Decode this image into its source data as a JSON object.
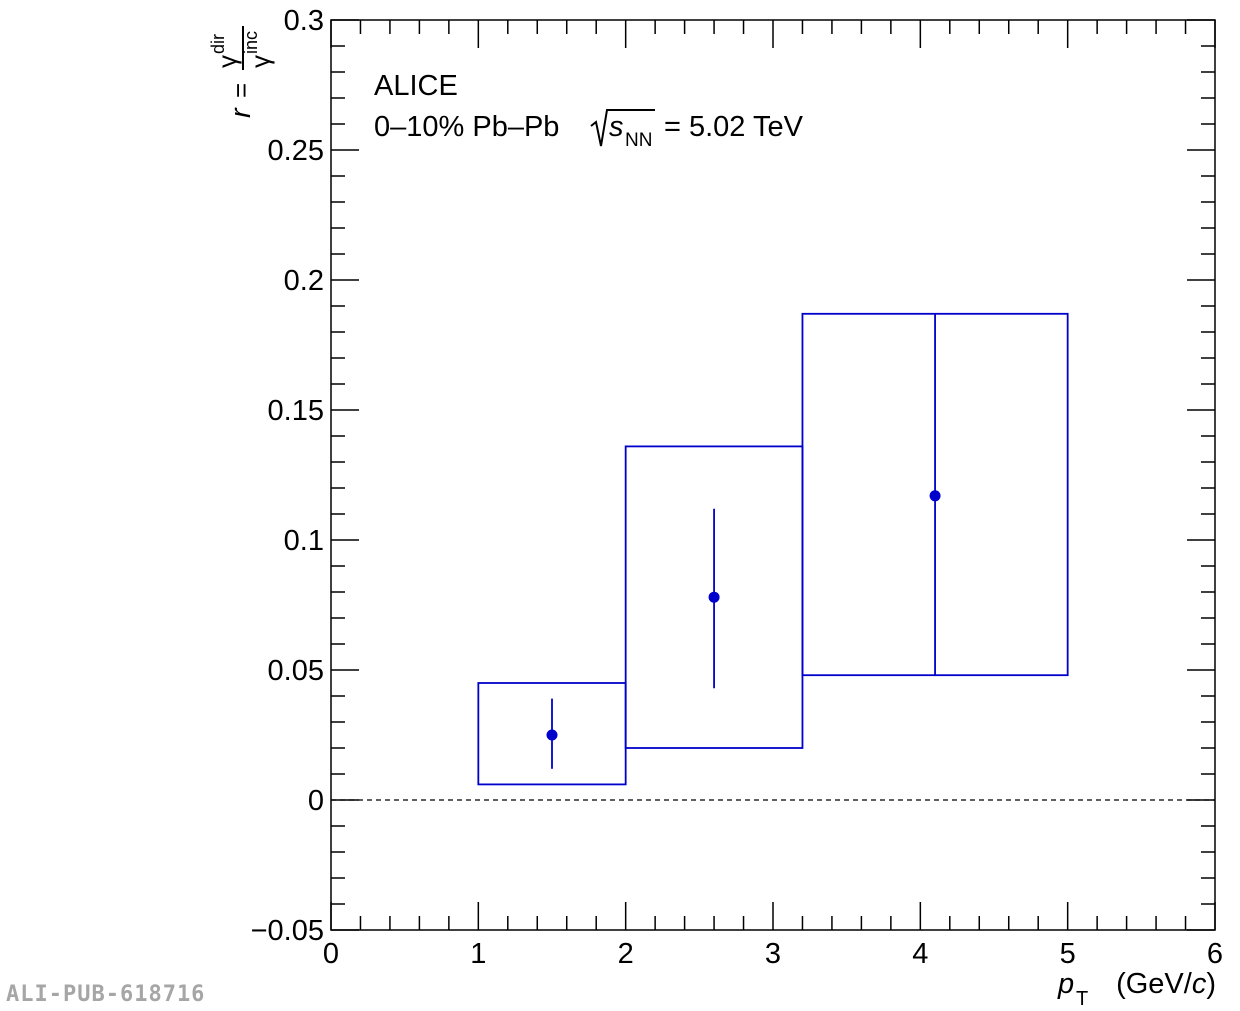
{
  "chart_data": {
    "type": "scatter",
    "experiment": "ALICE",
    "system_label": {
      "prefix": "0–10% Pb–Pb",
      "sqrt_s": "s",
      "sqrt_s_sub": "NN",
      "suffix": "= 5.02 TeV"
    },
    "xlabel": {
      "var": "p",
      "sub": "T",
      "unit_open": "(GeV/",
      "unit_c": "c",
      "unit_close": ")"
    },
    "ylabel": {
      "lhs": "r",
      "eq": "=",
      "num": "γ",
      "num_sup": "dir",
      "den": "γ",
      "den_sup": "inc"
    },
    "xlim": [
      0,
      6
    ],
    "ylim": [
      -0.05,
      0.3
    ],
    "x_ticks": [
      "0",
      "1",
      "2",
      "3",
      "4",
      "5",
      "6"
    ],
    "y_ticks": [
      {
        "v": -0.05,
        "label": "−0.05"
      },
      {
        "v": 0,
        "label": "0"
      },
      {
        "v": 0.05,
        "label": "0.05"
      },
      {
        "v": 0.1,
        "label": "0.1"
      },
      {
        "v": 0.15,
        "label": "0.15"
      },
      {
        "v": 0.2,
        "label": "0.2"
      },
      {
        "v": 0.25,
        "label": "0.25"
      },
      {
        "v": 0.3,
        "label": "0.3"
      }
    ],
    "reference_line_y": 0,
    "series": [
      {
        "color": "#0000cc",
        "points": [
          {
            "x": 1.5,
            "x_low": 1.0,
            "x_high": 2.0,
            "y": 0.025,
            "stat_low": 0.012,
            "stat_high": 0.039,
            "sys_low": 0.006,
            "sys_high": 0.045
          },
          {
            "x": 2.6,
            "x_low": 2.0,
            "x_high": 3.2,
            "y": 0.078,
            "stat_low": 0.043,
            "stat_high": 0.112,
            "sys_low": 0.02,
            "sys_high": 0.136
          },
          {
            "x": 4.1,
            "x_low": 3.2,
            "x_high": 5.0,
            "y": 0.117,
            "stat_low": 0.048,
            "stat_high": 0.187,
            "sys_low": 0.048,
            "sys_high": 0.187
          }
        ]
      }
    ]
  },
  "watermark": "ALI-PUB-618716"
}
